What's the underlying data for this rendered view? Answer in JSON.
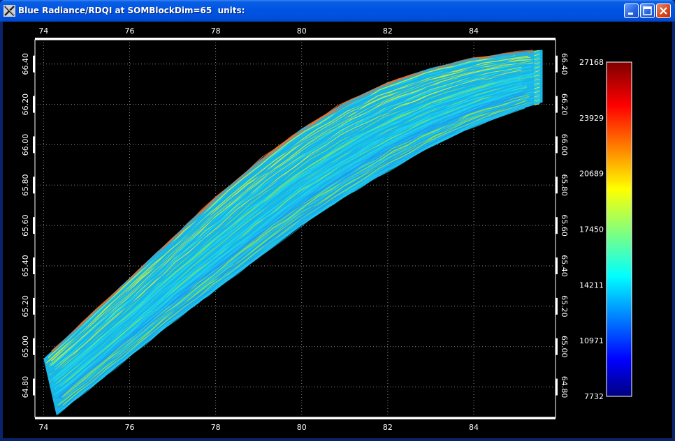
{
  "window": {
    "title": "Blue Radiance/RDQI at SOMBlockDim=65  units:",
    "buttons": {
      "minimize": "minimize",
      "maximize": "maximize",
      "close": "close"
    },
    "icons": {
      "app": "x-logo-icon",
      "minimize": "minimize-icon",
      "maximize": "maximize-icon",
      "close": "close-icon"
    }
  },
  "chart_data": {
    "type": "heatmap",
    "x": {
      "ticks": [
        "74",
        "76",
        "78",
        "80",
        "82",
        "84"
      ],
      "values": [
        74,
        76,
        78,
        80,
        82,
        84
      ],
      "range": [
        73.8,
        85.9
      ]
    },
    "y": {
      "ticks": [
        "64.80",
        "65.00",
        "65.20",
        "65.40",
        "65.60",
        "65.80",
        "66.00",
        "66.20",
        "66.40"
      ],
      "values": [
        64.8,
        65.0,
        65.2,
        65.4,
        65.6,
        65.8,
        66.0,
        66.2,
        66.4
      ],
      "range": [
        64.65,
        66.52
      ]
    },
    "grid": true,
    "colorbar": {
      "labels": [
        "27168",
        "23929",
        "20689",
        "17450",
        "14211",
        "10971",
        "7732"
      ],
      "min": 7732,
      "max": 27168,
      "colormap": "jet"
    },
    "swath": {
      "upper_edge": [
        [
          74.0,
          64.94
        ],
        [
          75.0,
          65.14
        ],
        [
          76.0,
          65.34
        ],
        [
          77.0,
          65.54
        ],
        [
          78.0,
          65.74
        ],
        [
          79.0,
          65.92
        ],
        [
          80.0,
          66.08
        ],
        [
          81.0,
          66.21
        ],
        [
          82.0,
          66.31
        ],
        [
          83.0,
          66.38
        ],
        [
          84.0,
          66.43
        ],
        [
          85.0,
          66.46
        ],
        [
          85.6,
          66.47
        ]
      ],
      "lower_edge": [
        [
          74.3,
          64.66
        ],
        [
          75.0,
          64.78
        ],
        [
          76.0,
          64.95
        ],
        [
          77.0,
          65.12
        ],
        [
          78.0,
          65.28
        ],
        [
          79.0,
          65.44
        ],
        [
          80.0,
          65.6
        ],
        [
          81.0,
          65.74
        ],
        [
          82.0,
          65.87
        ],
        [
          83.0,
          65.99
        ],
        [
          84.0,
          66.09
        ],
        [
          85.0,
          66.17
        ],
        [
          85.6,
          66.21
        ]
      ],
      "typical_value": 14211
    }
  }
}
